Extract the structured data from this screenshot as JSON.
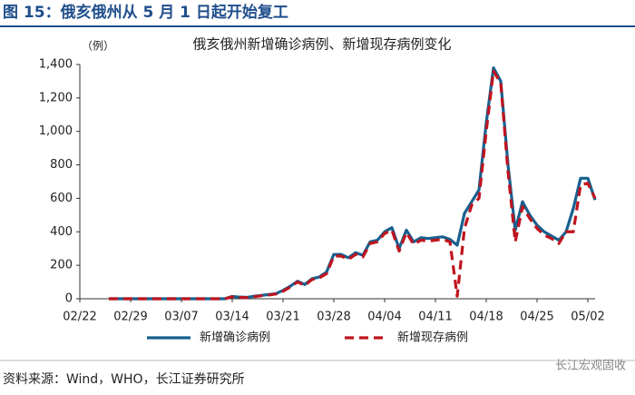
{
  "header": {
    "title": "图 15：俄亥俄州从 5 月 1 日起开始复工"
  },
  "chart_data": {
    "type": "line",
    "title": "俄亥俄州新增确诊病例、新增现存病例变化",
    "y_label": "（例）",
    "categories": [
      "02/22",
      null,
      null,
      null,
      null,
      null,
      null,
      "02/29",
      null,
      null,
      null,
      null,
      null,
      null,
      "03/07",
      null,
      null,
      null,
      null,
      null,
      null,
      "03/14",
      null,
      null,
      null,
      null,
      null,
      null,
      "03/21",
      null,
      null,
      null,
      null,
      null,
      null,
      "03/28",
      null,
      null,
      null,
      null,
      null,
      null,
      "04/04",
      null,
      null,
      null,
      null,
      null,
      null,
      "04/11",
      null,
      null,
      null,
      null,
      null,
      null,
      "04/18",
      null,
      null,
      null,
      null,
      null,
      null,
      "04/25",
      null,
      null,
      null,
      null,
      null,
      null,
      "05/02",
      null
    ],
    "series": [
      {
        "name": "新增确诊病例",
        "color": "#17608f",
        "dash": false,
        "values": [
          null,
          null,
          null,
          null,
          0,
          0,
          0,
          0,
          0,
          0,
          0,
          0,
          0,
          0,
          0,
          0,
          0,
          0,
          0,
          0,
          0,
          14,
          10,
          8,
          15,
          20,
          25,
          30,
          50,
          75,
          105,
          85,
          120,
          130,
          160,
          265,
          265,
          245,
          275,
          260,
          340,
          350,
          400,
          425,
          300,
          410,
          340,
          365,
          360,
          365,
          370,
          355,
          320,
          510,
          580,
          650,
          1050,
          1380,
          1300,
          800,
          410,
          580,
          500,
          440,
          400,
          375,
          350,
          400,
          540,
          720,
          720,
          590
        ]
      },
      {
        "name": "新增现存病例",
        "color": "#c0141e",
        "dash": true,
        "values": [
          null,
          null,
          null,
          null,
          0,
          0,
          0,
          0,
          0,
          0,
          0,
          0,
          0,
          0,
          0,
          0,
          0,
          0,
          0,
          0,
          0,
          12,
          8,
          6,
          12,
          18,
          22,
          28,
          45,
          70,
          100,
          80,
          115,
          125,
          150,
          255,
          255,
          235,
          265,
          250,
          330,
          340,
          390,
          410,
          285,
          395,
          325,
          350,
          345,
          350,
          355,
          340,
          15,
          420,
          560,
          600,
          1000,
          1360,
          1290,
          760,
          340,
          550,
          480,
          420,
          380,
          360,
          330,
          400,
          400,
          680,
          690,
          600
        ]
      }
    ],
    "ylim": [
      0,
      1400
    ],
    "yticks": [
      0,
      200,
      400,
      600,
      800,
      {
        "value": 1000,
        "label": "1,000"
      },
      {
        "value": 1200,
        "label": "1,200"
      },
      {
        "value": 1400,
        "label": "1,400"
      }
    ],
    "grid": false
  },
  "footer": {
    "source": "资料来源：Wind，WHO，长江证券研究所",
    "watermark": "长江宏观固收"
  }
}
